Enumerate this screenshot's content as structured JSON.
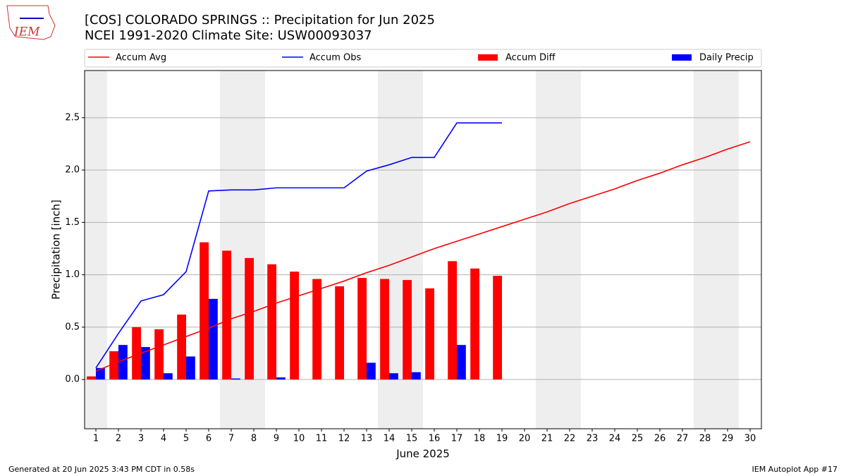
{
  "logo_text": "IEM",
  "footer_left": "Generated at 20 Jun 2025 3:43 PM CDT in 0.58s",
  "footer_right": "IEM Autoplot App #17",
  "chart_data": {
    "type": "bar_line",
    "title": "[COS] COLORADO SPRINGS :: Precipitation for Jun 2025",
    "subtitle": "NCEI 1991-2020 Climate Site: USW00093037",
    "xlabel": "June 2025",
    "ylabel": "Precipitation [inch]",
    "x": [
      1,
      2,
      3,
      4,
      5,
      6,
      7,
      8,
      9,
      10,
      11,
      12,
      13,
      14,
      15,
      16,
      17,
      18,
      19,
      20,
      21,
      22,
      23,
      24,
      25,
      26,
      27,
      28,
      29,
      30
    ],
    "series": [
      {
        "name": "Accum Avg",
        "kind": "line",
        "color": "#ff0000",
        "values": [
          0.08,
          0.17,
          0.25,
          0.33,
          0.41,
          0.49,
          0.58,
          0.65,
          0.73,
          0.8,
          0.87,
          0.94,
          1.02,
          1.09,
          1.17,
          1.25,
          1.32,
          1.39,
          1.46,
          1.53,
          1.6,
          1.68,
          1.75,
          1.82,
          1.9,
          1.97,
          2.05,
          2.12,
          2.2,
          2.27
        ]
      },
      {
        "name": "Accum Obs",
        "kind": "line",
        "color": "#0000ff",
        "values": [
          0.11,
          0.44,
          0.75,
          0.81,
          1.03,
          1.8,
          1.81,
          1.81,
          1.83,
          1.83,
          1.83,
          1.83,
          1.99,
          2.05,
          2.12,
          2.12,
          2.45,
          2.45,
          2.45,
          null,
          null,
          null,
          null,
          null,
          null,
          null,
          null,
          null,
          null,
          null
        ]
      },
      {
        "name": "Accum Diff",
        "kind": "bar",
        "color": "#ff0000",
        "values": [
          0.03,
          0.27,
          0.5,
          0.48,
          0.62,
          1.31,
          1.23,
          1.16,
          1.1,
          1.03,
          0.96,
          0.89,
          0.97,
          0.96,
          0.95,
          0.87,
          1.13,
          1.06,
          0.99,
          null,
          null,
          null,
          null,
          null,
          null,
          null,
          null,
          null,
          null,
          null
        ]
      },
      {
        "name": "Daily Precip",
        "kind": "bar",
        "color": "#0000ff",
        "values": [
          0.11,
          0.33,
          0.31,
          0.06,
          0.22,
          0.77,
          0.01,
          0,
          0.02,
          0,
          0,
          0,
          0.16,
          0.06,
          0.07,
          0,
          0.33,
          0,
          0,
          null,
          null,
          null,
          null,
          null,
          null,
          null,
          null,
          null,
          null,
          null
        ]
      }
    ],
    "shaded_days": [
      1,
      7,
      8,
      14,
      15,
      21,
      22,
      28,
      29
    ],
    "xlim": [
      0.5,
      30.5
    ],
    "xticks": [
      1,
      2,
      3,
      4,
      5,
      6,
      7,
      8,
      9,
      10,
      11,
      12,
      13,
      14,
      15,
      16,
      17,
      18,
      19,
      20,
      21,
      22,
      23,
      24,
      25,
      26,
      27,
      28,
      29,
      30
    ],
    "ylim": [
      -0.47,
      2.95
    ],
    "yticks": [
      {
        "value": 0,
        "label": "0.0"
      },
      0.5,
      {
        "value": 1,
        "label": "1.0"
      },
      1.5,
      {
        "value": 2,
        "label": "2.0"
      },
      2.5
    ],
    "grid": true
  }
}
